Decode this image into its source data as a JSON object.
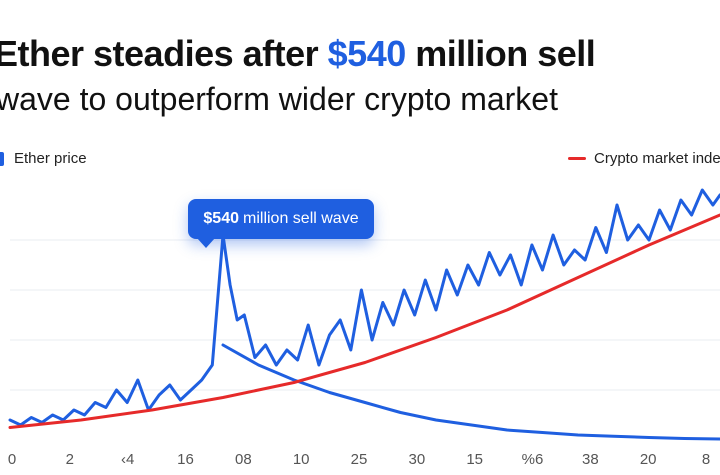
{
  "title": {
    "part1": "Ether steadies after ",
    "highlight": "$540",
    "part2": " million sell",
    "line2": "wave to outperform wider crypto market"
  },
  "legend": {
    "ether": "Ether price",
    "crypto": "Crypto market inde"
  },
  "annotation": {
    "amount": "$540",
    "text": "million sell wave"
  },
  "colors": {
    "ether": "#1f5fe0",
    "crypto": "#e62a2a",
    "grid": "#e9edf2"
  },
  "chart_data": {
    "type": "line",
    "x_tick_labels": [
      "0",
      "2",
      "‹4",
      "16",
      "08",
      "10",
      "25",
      "30",
      "15",
      "%6",
      "38",
      "20",
      "8"
    ],
    "grid": true,
    "legend_position": "top",
    "series": [
      {
        "name": "Ether price",
        "x": [
          0,
          0.015,
          0.03,
          0.045,
          0.06,
          0.075,
          0.09,
          0.105,
          0.12,
          0.135,
          0.15,
          0.165,
          0.18,
          0.195,
          0.21,
          0.225,
          0.24,
          0.255,
          0.27,
          0.285,
          0.3,
          0.31,
          0.32,
          0.33,
          0.345,
          0.36,
          0.375,
          0.39,
          0.405,
          0.42,
          0.435,
          0.45,
          0.465,
          0.48,
          0.495,
          0.51,
          0.525,
          0.54,
          0.555,
          0.57,
          0.585,
          0.6,
          0.615,
          0.63,
          0.645,
          0.66,
          0.675,
          0.69,
          0.705,
          0.72,
          0.735,
          0.75,
          0.765,
          0.78,
          0.795,
          0.81,
          0.825,
          0.84,
          0.855,
          0.87,
          0.885,
          0.9,
          0.915,
          0.93,
          0.945,
          0.96,
          0.975,
          0.99,
          1.0
        ],
        "y": [
          0.08,
          0.06,
          0.09,
          0.07,
          0.1,
          0.08,
          0.12,
          0.1,
          0.15,
          0.13,
          0.2,
          0.15,
          0.24,
          0.12,
          0.18,
          0.22,
          0.16,
          0.2,
          0.24,
          0.3,
          0.82,
          0.62,
          0.48,
          0.5,
          0.33,
          0.38,
          0.3,
          0.36,
          0.32,
          0.46,
          0.3,
          0.42,
          0.48,
          0.36,
          0.6,
          0.4,
          0.55,
          0.46,
          0.6,
          0.5,
          0.64,
          0.52,
          0.68,
          0.58,
          0.7,
          0.62,
          0.75,
          0.66,
          0.74,
          0.62,
          0.78,
          0.68,
          0.82,
          0.7,
          0.76,
          0.72,
          0.85,
          0.75,
          0.94,
          0.8,
          0.86,
          0.8,
          0.92,
          0.84,
          0.96,
          0.9,
          1.0,
          0.94,
          0.98
        ]
      },
      {
        "name": "Ether price",
        "x": [
          0.3,
          0.35,
          0.4,
          0.45,
          0.5,
          0.55,
          0.6,
          0.65,
          0.7,
          0.75,
          0.8,
          0.85,
          0.9,
          0.95,
          1.0
        ],
        "y": [
          0.38,
          0.3,
          0.24,
          0.19,
          0.15,
          0.11,
          0.08,
          0.06,
          0.04,
          0.03,
          0.02,
          0.015,
          0.01,
          0.006,
          0.004
        ]
      },
      {
        "name": "Crypto market inde",
        "x": [
          0,
          0.1,
          0.2,
          0.3,
          0.4,
          0.5,
          0.6,
          0.7,
          0.8,
          0.9,
          1.0
        ],
        "y": [
          0.05,
          0.08,
          0.12,
          0.17,
          0.23,
          0.31,
          0.41,
          0.52,
          0.65,
          0.78,
          0.9
        ]
      }
    ]
  }
}
